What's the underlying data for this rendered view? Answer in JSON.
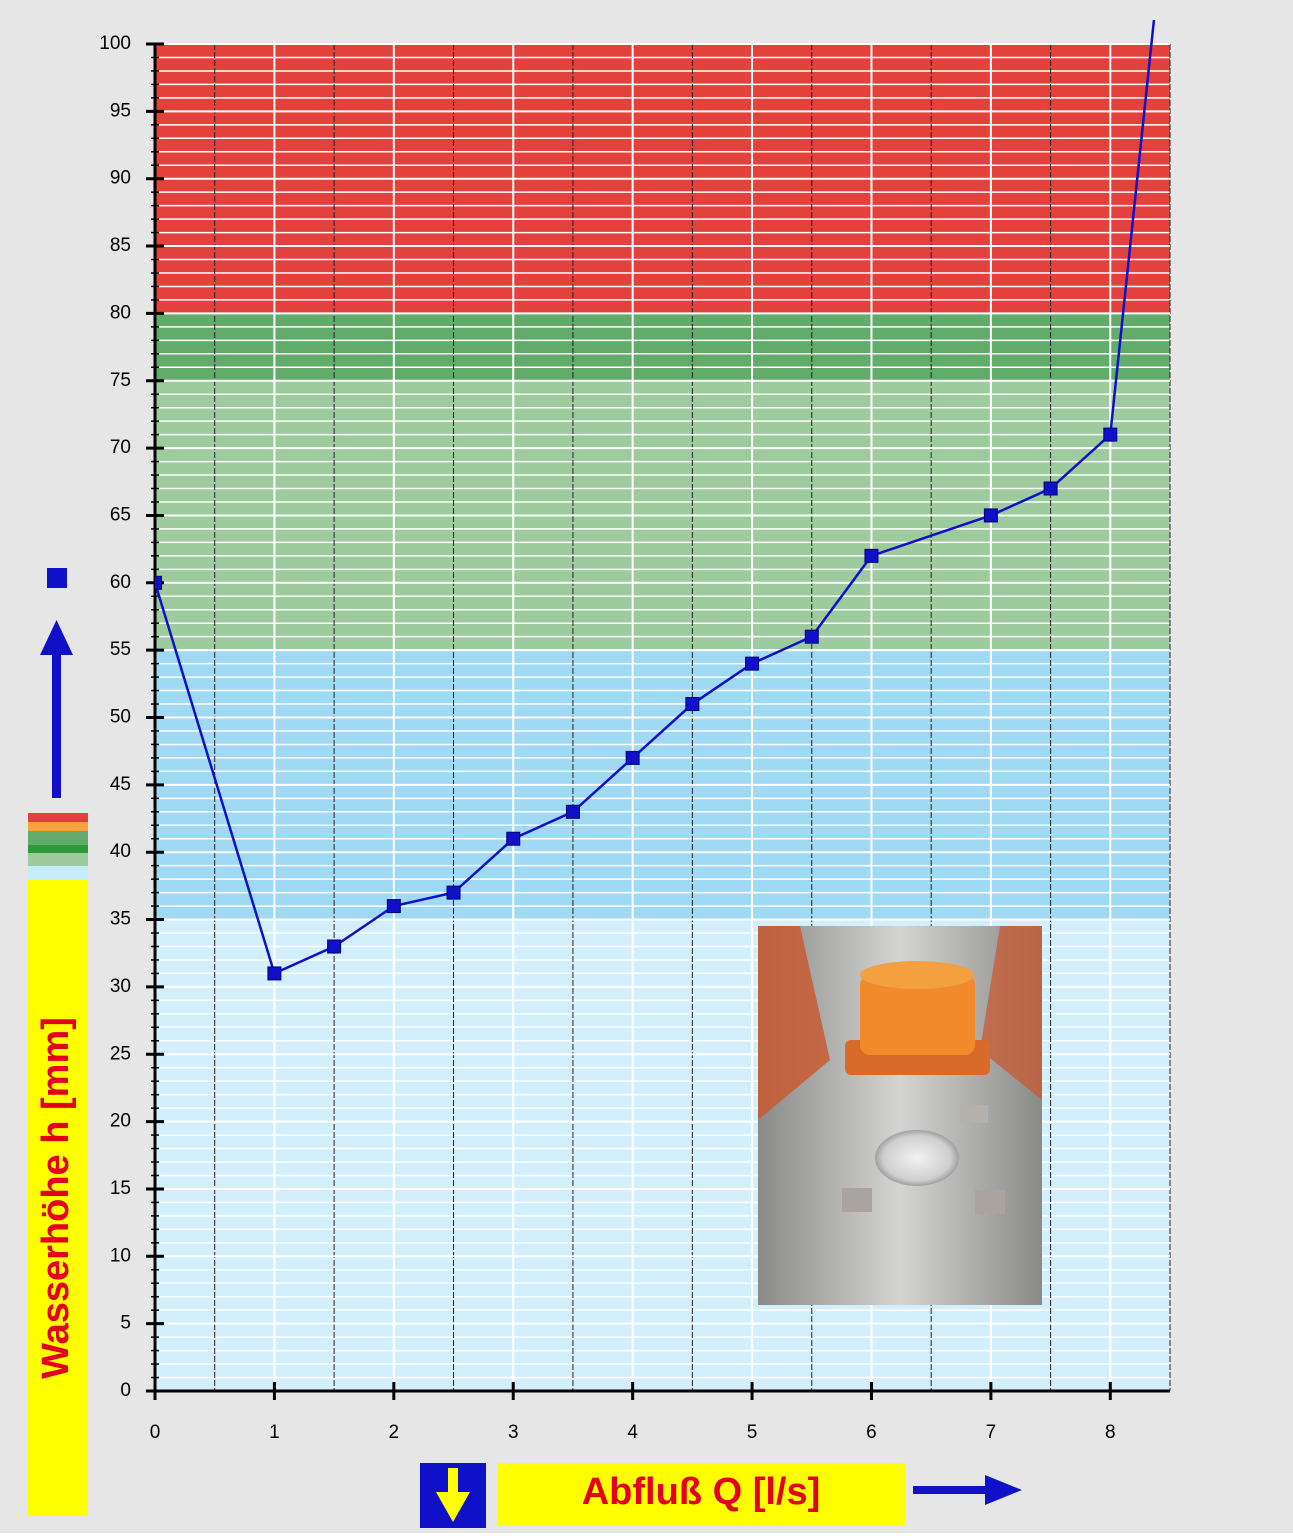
{
  "chart_data": {
    "type": "line",
    "x_label": "Abfluß Q [l/s]",
    "y_label": "Wasserhöhe h [mm]",
    "xlim": [
      0,
      8.5
    ],
    "ylim": [
      0,
      100
    ],
    "xticks": [
      0,
      1,
      2,
      3,
      4,
      5,
      6,
      7,
      8
    ],
    "yticks": [
      0,
      5,
      10,
      15,
      20,
      25,
      30,
      35,
      40,
      45,
      50,
      55,
      60,
      65,
      70,
      75,
      80,
      85,
      90,
      95,
      100
    ],
    "y_minor_step": 1,
    "x_grid_step": 0.5,
    "grid": true,
    "bands": [
      {
        "from": 0,
        "to": 35,
        "color": "#d3effb"
      },
      {
        "from": 35,
        "to": 55,
        "color": "#9fd9f4"
      },
      {
        "from": 55,
        "to": 75,
        "color": "#9ecb9e"
      },
      {
        "from": 75,
        "to": 80,
        "color": "#62ab6a"
      },
      {
        "from": 80,
        "to": 100,
        "color": "#e3413c"
      }
    ],
    "series": [
      {
        "color": "#1010c8",
        "x": [
          0,
          1,
          1.5,
          2,
          2.5,
          3,
          3.5,
          4,
          4.5,
          5,
          5.5,
          6,
          7,
          7.5,
          8,
          8.38
        ],
        "values": [
          60,
          31,
          33,
          36,
          37,
          41,
          43,
          47,
          51,
          54,
          56,
          62,
          65,
          67,
          71,
          103
        ]
      }
    ]
  }
}
